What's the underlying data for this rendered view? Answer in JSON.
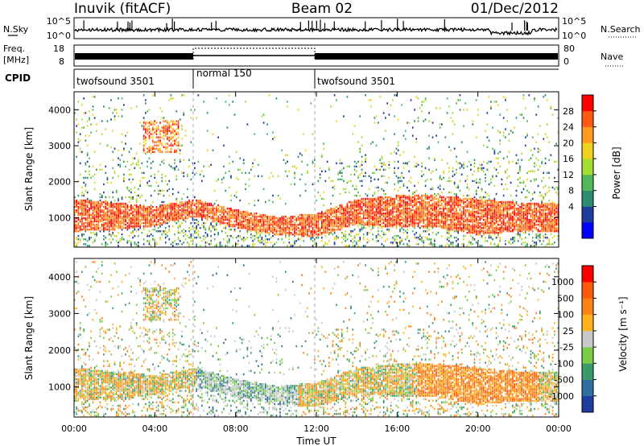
{
  "header": {
    "station": "Inuvik (fitACF)",
    "beam": "Beam 02",
    "date": "01/Dec/2012"
  },
  "top_panels": {
    "nsky_label": "N.Sky",
    "nsky_ticks": [
      "10^5",
      "10^0"
    ],
    "nsearch_label": "N.Search",
    "nsearch_ticks": [
      "10^5",
      "10^0"
    ],
    "freq_label_line1": "Freq.",
    "freq_label_line2": "[MHz]",
    "freq_ticks": [
      "18",
      "8"
    ],
    "nave_label": "Nave",
    "nave_ticks": [
      "80",
      "0"
    ],
    "cpid_label": "CPID",
    "cpid_segments": [
      {
        "label": "twofsound 3501",
        "start": 0,
        "end": 6
      },
      {
        "label": "normal 150",
        "start": 6,
        "end": 12
      },
      {
        "label": "twofsound 3501",
        "start": 12,
        "end": 24
      }
    ]
  },
  "chart_data": [
    {
      "type": "heatmap",
      "panel": "power",
      "xlabel": "Time UT",
      "ylabel": "Slant Range [km]",
      "xlim": [
        0,
        24
      ],
      "ylim": [
        180,
        4500
      ],
      "yticks": [
        "1000",
        "2000",
        "3000",
        "4000"
      ],
      "colorbar_label": "Power [dB]",
      "colorbar_ticks": [
        "28",
        "24",
        "20",
        "16",
        "12",
        "8",
        "4"
      ],
      "colorbar_colors": [
        "#0000ff",
        "#1e3c9c",
        "#2f8a73",
        "#52b85a",
        "#a5dc33",
        "#f0d21e",
        "#ff9a1e",
        "#ff5a14",
        "#ff0000"
      ],
      "bands": [
        {
          "t": [
            0,
            2,
            4,
            5,
            6,
            8,
            10,
            12,
            14,
            16,
            18,
            20,
            22,
            24
          ],
          "lo": [
            600,
            650,
            750,
            900,
            1000,
            700,
            500,
            450,
            800,
            700,
            700,
            500,
            600,
            600
          ],
          "hi": [
            1500,
            1400,
            1300,
            1400,
            1500,
            1200,
            1000,
            1100,
            1500,
            1600,
            1600,
            1500,
            1400,
            1400
          ],
          "intensity": 24
        }
      ]
    },
    {
      "type": "heatmap",
      "panel": "velocity",
      "xlabel": "Time UT",
      "ylabel": "Slant Range [km]",
      "xlim": [
        0,
        24
      ],
      "ylim": [
        180,
        4500
      ],
      "xticks": [
        "00:00",
        "04:00",
        "08:00",
        "12:00",
        "16:00",
        "20:00",
        "00:00"
      ],
      "yticks": [
        "1000",
        "2000",
        "3000",
        "4000"
      ],
      "colorbar_label": "Velocity [m s⁻¹]",
      "colorbar_ticks": [
        "1000",
        "500",
        "100",
        "25",
        "-25",
        "-100",
        "-500",
        "-1000"
      ],
      "colorbar_colors": [
        "#1e3ca0",
        "#2f6fa0",
        "#3a9a6a",
        "#7ccc46",
        "#c8c8c8",
        "#ffb41e",
        "#ff8214",
        "#ff5a0a",
        "#ff0000"
      ]
    }
  ]
}
